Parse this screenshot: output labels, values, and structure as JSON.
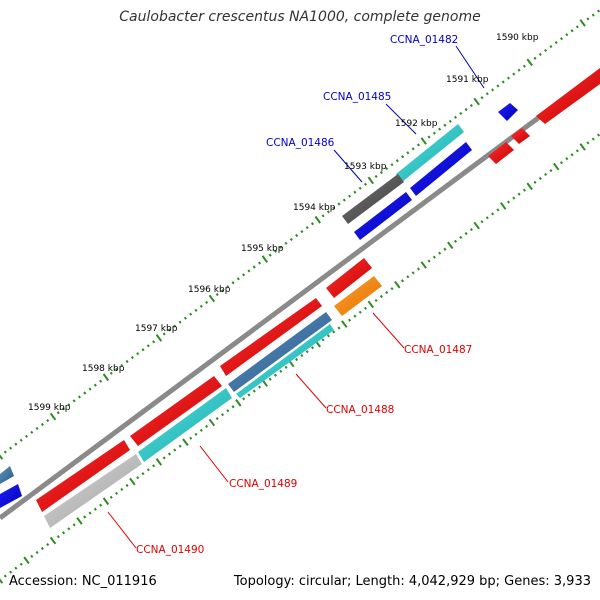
{
  "title": "Caulobacter crescentus NA1000, complete genome",
  "accession": "Accession: NC_011916",
  "summary": "Topology: circular; Length: 4,042,929 bp; Genes: 3,933",
  "kbp_labels": [
    "1590 kbp",
    "1591 kbp",
    "1592 kbp",
    "1593 kbp",
    "1594 kbp",
    "1595 kbp",
    "1596 kbp",
    "1597 kbp",
    "1598 kbp",
    "1599 kbp"
  ],
  "gene_labels": {
    "ccna_01482": "CCNA_01482",
    "ccna_01485": "CCNA_01485",
    "ccna_01486": "CCNA_01486",
    "ccna_01487": "CCNA_01487",
    "ccna_01488": "CCNA_01488",
    "ccna_01489": "CCNA_01489",
    "ccna_01490": "CCNA_01490"
  },
  "colors": {
    "red": "#ff0000",
    "cyan": "#2ec8c8",
    "blue": "#0000ee",
    "gray": "#555555",
    "lightgray": "#c0c0c0",
    "steelblue": "#3f78a8",
    "orange": "#ff8c00",
    "tick": "#2e8b22",
    "backbone": "#8a8a8a",
    "label_blue": "#0000cc",
    "label_red": "#dd0000"
  }
}
